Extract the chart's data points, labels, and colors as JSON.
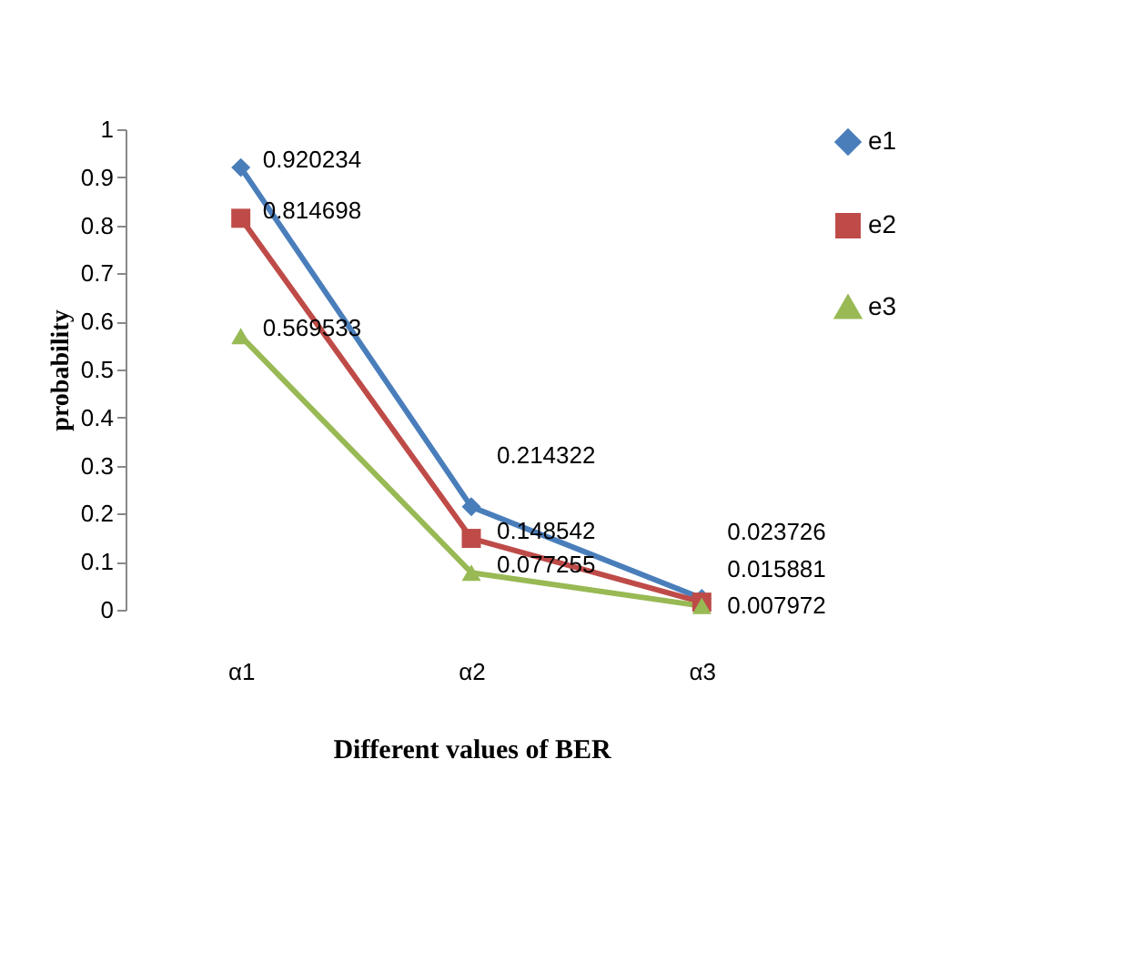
{
  "chart_data": {
    "type": "line",
    "xlabel": "Different values of BER",
    "ylabel": "probability",
    "categories": [
      "α1",
      "α2",
      "α3"
    ],
    "series": [
      {
        "name": "e1",
        "color": "#4a7ebb",
        "marker": "diamond",
        "values": [
          0.920234,
          0.214322,
          0.023726
        ]
      },
      {
        "name": "e2",
        "color": "#be4b48",
        "marker": "square",
        "values": [
          0.814698,
          0.148542,
          0.015881
        ]
      },
      {
        "name": "e3",
        "color": "#98b954",
        "marker": "triangle",
        "values": [
          0.569533,
          0.077255,
          0.007972
        ]
      }
    ],
    "ylim": [
      0,
      1
    ],
    "yticks": [
      0,
      0.1,
      0.2,
      0.3,
      0.4,
      0.5,
      0.6,
      0.7,
      0.8,
      0.9,
      1
    ],
    "grid": false,
    "legend": "right",
    "data_labels": true
  }
}
